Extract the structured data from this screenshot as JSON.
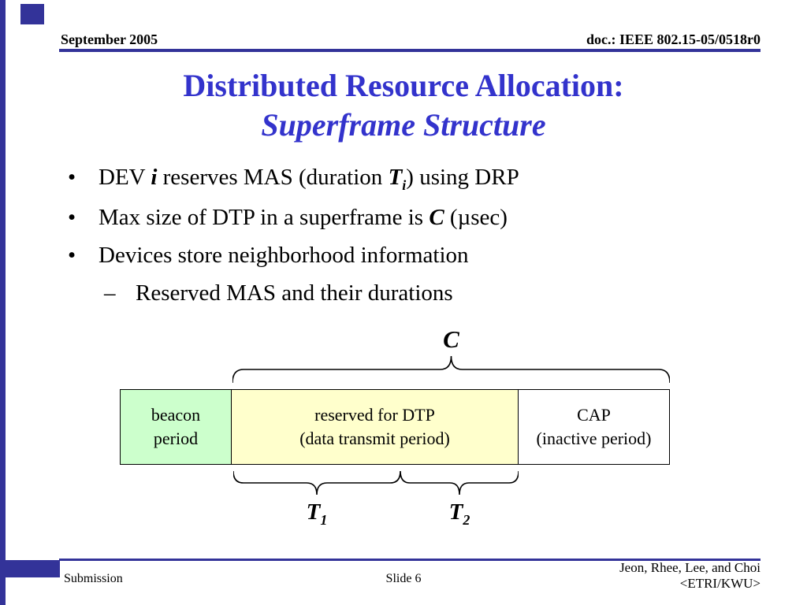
{
  "colors": {
    "accent_blue": "#333399",
    "title_blue": "#3333CC",
    "beacon_green": "#CCFFCC",
    "dtp_yellow": "#FFFFCC",
    "cap_white": "#FFFFFF"
  },
  "header": {
    "date": "September 2005",
    "doc": "doc.: IEEE 802.15-05/0518r0"
  },
  "title": {
    "line1": "Distributed Resource Allocation:",
    "line2": "Superframe Structure"
  },
  "bullets": [
    {
      "marker": "•",
      "runs": [
        {
          "t": "DEV "
        },
        {
          "t": "i",
          "s": "bi"
        },
        {
          "t": " reserves MAS (duration "
        },
        {
          "t": "T",
          "s": "bi"
        },
        {
          "t": "i",
          "s": "bisub"
        },
        {
          "t": ") using DRP"
        }
      ]
    },
    {
      "marker": "•",
      "runs": [
        {
          "t": "Max size of DTP in a superframe is "
        },
        {
          "t": "C",
          "s": "bi"
        },
        {
          "t": " (µsec)"
        }
      ]
    },
    {
      "marker": "•",
      "runs": [
        {
          "t": "Devices store neighborhood information"
        }
      ]
    },
    {
      "marker": "–",
      "runs": [
        {
          "t": "Reserved MAS and their durations"
        }
      ]
    }
  ],
  "diagram": {
    "c_label": "C",
    "t1": {
      "base": "T",
      "sub": "1"
    },
    "t2": {
      "base": "T",
      "sub": "2"
    },
    "boxes": [
      {
        "line1": "beacon",
        "line2": "period",
        "color": "#CCFFCC"
      },
      {
        "line1": "reserved for DTP",
        "line2": "(data transmit period)",
        "color": "#FFFFCC"
      },
      {
        "line1": "CAP",
        "line2": "(inactive period)",
        "color": "#FFFFFF"
      }
    ]
  },
  "footer": {
    "left": "Submission",
    "center": "Slide 6",
    "right_line1": "Jeon, Rhee, Lee, and Choi",
    "right_line2": "<ETRI/KWU>"
  }
}
